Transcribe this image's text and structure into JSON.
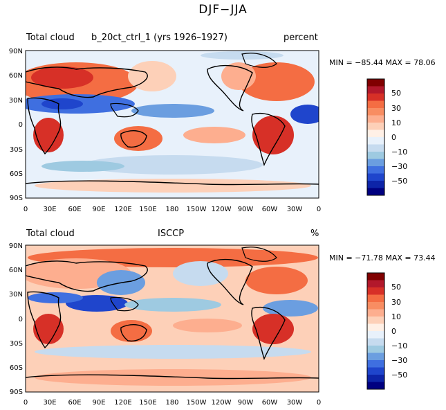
{
  "figure": {
    "title": "DJF−JJA"
  },
  "panels": [
    {
      "left_label": "Total cloud",
      "center_label": "b_20ct_ctrl_1 (yrs 1926–1927)",
      "right_label": "percent",
      "stats": "MIN = −85.44  MAX =  78.06",
      "min": -85.44,
      "max": 78.06
    },
    {
      "left_label": "Total cloud",
      "center_label": "ISCCP",
      "right_label": "%",
      "stats": "MIN = −71.78  MAX =  73.44",
      "min": -71.78,
      "max": 73.44
    }
  ],
  "axes": {
    "lat_ticks": [
      "90N",
      "60N",
      "30N",
      "0",
      "30S",
      "60S",
      "90S"
    ],
    "lon_ticks": [
      "0",
      "30E",
      "60E",
      "90E",
      "120E",
      "150E",
      "180",
      "150W",
      "120W",
      "90W",
      "60W",
      "30W",
      "0"
    ]
  },
  "colorbar": {
    "labels": [
      "50",
      "30",
      "10",
      "0",
      "−10",
      "−30",
      "−50"
    ],
    "colors": [
      "#800000",
      "#b2182b",
      "#d73027",
      "#f46d43",
      "#f88d62",
      "#fdae8f",
      "#fdd0b8",
      "#fff0e6",
      "#e8f1fb",
      "#c6dbef",
      "#9ecae1",
      "#6b9ee0",
      "#3f6fe0",
      "#1f45cc",
      "#0d24a8",
      "#000080"
    ]
  }
}
